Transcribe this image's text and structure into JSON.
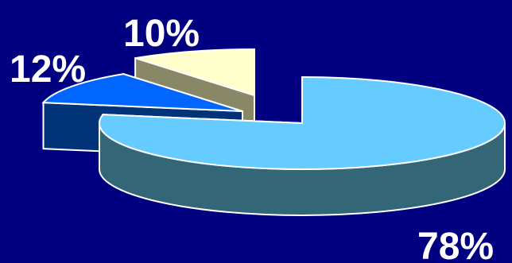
{
  "chart_data": {
    "type": "pie",
    "style": "3d-exploded",
    "title": "",
    "slices": [
      {
        "label": "78%",
        "value": 78,
        "top_color": "#66ccff",
        "side_color": "#336677"
      },
      {
        "label": "12%",
        "value": 12,
        "top_color": "#0066ff",
        "side_color": "#003377"
      },
      {
        "label": "10%",
        "value": 10,
        "top_color": "#ffffcc",
        "side_color": "#888866"
      }
    ],
    "background_color": "#000080",
    "label_color": "#ffffff"
  }
}
